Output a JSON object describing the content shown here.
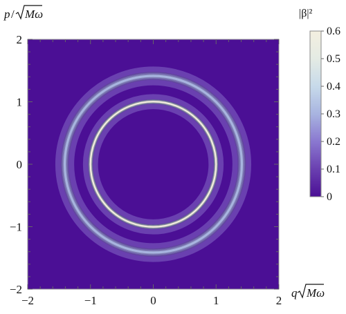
{
  "chart_data": {
    "type": "heatmap",
    "subtype": "contour-density",
    "title": "",
    "xlabel": {
      "var": "q",
      "radicand": "Mω"
    },
    "ylabel": {
      "var": "p",
      "radicand": "Mω"
    },
    "xlim": [
      -2,
      2
    ],
    "ylim": [
      -2,
      2
    ],
    "xticks": [
      -2,
      -1,
      0,
      1,
      2
    ],
    "yticks": [
      -2,
      -1,
      0,
      1,
      2
    ],
    "tick_labels_x": [
      "−2",
      "−1",
      "0",
      "1",
      "2"
    ],
    "tick_labels_y": [
      "−2",
      "−1",
      "0",
      "1",
      "2"
    ],
    "grid": false,
    "background_color": "#4B0F95",
    "colorbar": {
      "label": "|β|²",
      "min": 0,
      "max": 0.6,
      "ticks": [
        0,
        0.1,
        0.2,
        0.3,
        0.4,
        0.5,
        0.6
      ],
      "tick_labels": [
        "0",
        "0.1",
        "0.2",
        "0.3",
        "0.4",
        "0.5",
        "0.6"
      ],
      "placement": "right",
      "colors": [
        "#4B0F95",
        "#6A40B0",
        "#8A78D0",
        "#A8B4E0",
        "#C7DAEA",
        "#E4EBE4",
        "#F4EFE0"
      ]
    },
    "rings": [
      {
        "name": "inner ring",
        "radius": 1.0,
        "width": 0.06,
        "peak": 0.6,
        "halo_width": 0.18,
        "halo_level": 0.1
      },
      {
        "name": "outer ring",
        "radius": 1.41,
        "width": 0.12,
        "peak": 0.3,
        "halo_width": 0.18,
        "halo_level": 0.1
      }
    ]
  }
}
